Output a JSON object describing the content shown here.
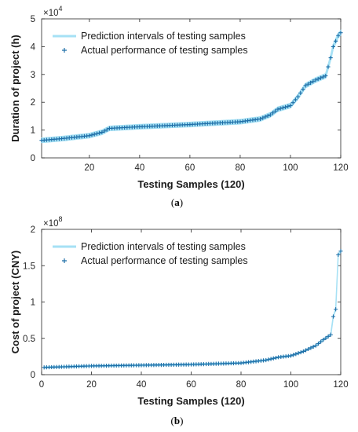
{
  "chart_data": [
    {
      "type": "line",
      "panel": "a",
      "caption": "a",
      "xlabel": "Testing Samples (120)",
      "ylabel": "Duration of project (h)",
      "exponent_label": "×10",
      "exponent_power": "4",
      "xlim": [
        1,
        120
      ],
      "ylim": [
        0,
        5
      ],
      "xticks": [
        20,
        40,
        60,
        80,
        100,
        120
      ],
      "yticks": [
        0,
        1,
        2,
        3,
        4,
        5
      ],
      "legend_position": "top-left",
      "colors": {
        "band": "#a6e1f5",
        "marker": "#1f6fa8"
      },
      "series": [
        {
          "name": "Prediction intervals of testing samples",
          "kind": "band",
          "band_halfwidth": 0.08
        },
        {
          "name": "Actual performance of testing samples",
          "kind": "marker",
          "knots_x": [
            1,
            10,
            20,
            25,
            28,
            40,
            60,
            80,
            88,
            92,
            95,
            100,
            103,
            106,
            110,
            114,
            116,
            117,
            119,
            120
          ],
          "knots_y": [
            0.63,
            0.7,
            0.8,
            0.92,
            1.06,
            1.12,
            1.2,
            1.3,
            1.4,
            1.55,
            1.75,
            1.88,
            2.2,
            2.6,
            2.8,
            2.95,
            3.6,
            4.0,
            4.4,
            4.5
          ]
        }
      ]
    },
    {
      "type": "line",
      "panel": "b",
      "caption": "b",
      "xlabel": "Testing Samples (120)",
      "ylabel": "Cost of project (CNY)",
      "exponent_label": "×10",
      "exponent_power": "8",
      "xlim": [
        0,
        120
      ],
      "ylim": [
        0,
        2
      ],
      "xticks": [
        0,
        20,
        40,
        60,
        80,
        100,
        120
      ],
      "yticks": [
        0,
        0.5,
        1,
        1.5,
        2
      ],
      "ytick_labels": [
        "0",
        "0.5",
        "1",
        "1.5",
        "2"
      ],
      "legend_position": "top-left",
      "colors": {
        "band": "#a6e1f5",
        "marker": "#1f6fa8"
      },
      "series": [
        {
          "name": "Prediction intervals of testing samples",
          "kind": "band",
          "band_halfwidth": 0.008
        },
        {
          "name": "Actual performance of testing samples",
          "kind": "marker",
          "knots_x": [
            1,
            20,
            40,
            60,
            80,
            90,
            95,
            100,
            105,
            110,
            113,
            116,
            117,
            118,
            119,
            120
          ],
          "knots_y": [
            0.1,
            0.12,
            0.13,
            0.14,
            0.16,
            0.2,
            0.24,
            0.26,
            0.32,
            0.4,
            0.48,
            0.55,
            0.8,
            0.9,
            1.65,
            1.7
          ]
        }
      ]
    }
  ]
}
